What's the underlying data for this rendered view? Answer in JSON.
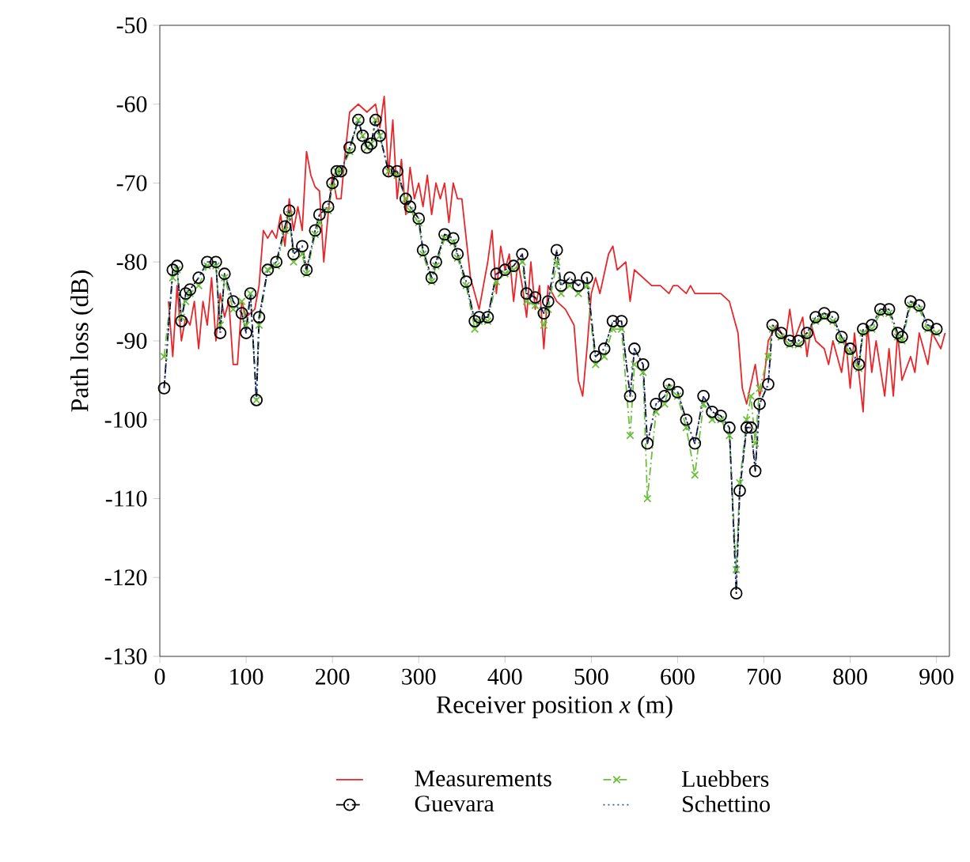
{
  "chart_data": {
    "type": "line",
    "xlabel": "Receiver position *x* (m)",
    "ylabel": "Path loss (dB)",
    "xlim": [
      0,
      915
    ],
    "ylim": [
      -130,
      -50
    ],
    "xticks": [
      0,
      100,
      200,
      300,
      400,
      500,
      600,
      700,
      800,
      900
    ],
    "yticks": [
      -130,
      -120,
      -110,
      -100,
      -90,
      -80,
      -70,
      -60,
      -50
    ],
    "legend": "bottom",
    "grid": false,
    "series": [
      {
        "name": "Measurements",
        "color": "#e8262a",
        "line_style": "solid",
        "marker": "none",
        "x": [
          10,
          15,
          20,
          25,
          30,
          35,
          40,
          45,
          50,
          55,
          60,
          65,
          70,
          75,
          80,
          85,
          90,
          95,
          100,
          110,
          115,
          120,
          125,
          130,
          135,
          140,
          145,
          150,
          155,
          160,
          165,
          170,
          175,
          180,
          185,
          190,
          195,
          200,
          205,
          210,
          215,
          220,
          230,
          240,
          250,
          255,
          260,
          265,
          270,
          275,
          280,
          285,
          290,
          295,
          300,
          305,
          310,
          315,
          320,
          325,
          330,
          335,
          340,
          345,
          350,
          355,
          360,
          365,
          370,
          375,
          380,
          385,
          390,
          395,
          400,
          405,
          410,
          415,
          420,
          425,
          430,
          435,
          440,
          445,
          450,
          460,
          470,
          480,
          485,
          490,
          495,
          500,
          505,
          510,
          520,
          525,
          530,
          540,
          545,
          550,
          560,
          570,
          580,
          590,
          595,
          600,
          610,
          615,
          620,
          630,
          640,
          650,
          660,
          670,
          675,
          680,
          690,
          695,
          700,
          705,
          715,
          725,
          730,
          735,
          745,
          750,
          755,
          760,
          770,
          775,
          780,
          790,
          795,
          800,
          805,
          815,
          820,
          825,
          830,
          840,
          845,
          850,
          855,
          860,
          870,
          875,
          880,
          890,
          895,
          905,
          910
        ],
        "values": [
          -85,
          -92,
          -83,
          -90,
          -87,
          -88,
          -85,
          -91,
          -85,
          -88,
          -82,
          -90,
          -84,
          -87,
          -85,
          -93,
          -93,
          -85,
          -87,
          -86,
          -83,
          -76,
          -77,
          -76,
          -77,
          -74,
          -78,
          -72,
          -76,
          -73,
          -76,
          -66,
          -69,
          -70.5,
          -71,
          -80,
          -74,
          -69,
          -72,
          -72,
          -66,
          -61,
          -60,
          -61,
          -60,
          -63,
          -59,
          -69,
          -62,
          -72,
          -67,
          -74,
          -68,
          -72,
          -70,
          -73,
          -69,
          -74,
          -70,
          -72,
          -70,
          -75,
          -70,
          -72,
          -72,
          -77,
          -82,
          -84,
          -86,
          -83,
          -80,
          -76,
          -84,
          -78,
          -81,
          -79,
          -85,
          -80,
          -83,
          -87,
          -80,
          -86,
          -83,
          -91,
          -83,
          -85,
          -86,
          -88,
          -95,
          -97,
          -91,
          -84,
          -82,
          -84,
          -79,
          -78,
          -81,
          -80,
          -85,
          -81,
          -82,
          -83,
          -83,
          -84,
          -83,
          -83,
          -84,
          -83,
          -84,
          -84,
          -84,
          -84,
          -85,
          -89,
          -96,
          -98,
          -93,
          -97,
          -95,
          -90,
          -88,
          -90,
          -86,
          -90,
          -87,
          -92,
          -88,
          -90,
          -91,
          -93,
          -90,
          -94,
          -90,
          -96,
          -89,
          -99,
          -88,
          -94,
          -90,
          -97,
          -91,
          -97,
          -89,
          -95,
          -92,
          -94,
          -89,
          -93,
          -89,
          -91,
          -89
        ]
      },
      {
        "name": "Luebbers",
        "color": "#6cbf3c",
        "line_style": "dashed",
        "marker": "cross",
        "x": [
          5,
          15,
          20,
          25,
          30,
          35,
          45,
          55,
          65,
          70,
          75,
          85,
          95,
          100,
          105,
          112,
          115,
          125,
          135,
          145,
          150,
          155,
          165,
          170,
          180,
          185,
          195,
          200,
          205,
          210,
          220,
          230,
          235,
          240,
          245,
          250,
          255,
          265,
          275,
          285,
          290,
          300,
          305,
          315,
          320,
          330,
          340,
          345,
          355,
          365,
          370,
          380,
          390,
          400,
          410,
          420,
          425,
          435,
          445,
          450,
          460,
          465,
          475,
          485,
          495,
          505,
          515,
          525,
          535,
          545,
          550,
          560,
          565,
          575,
          585,
          590,
          600,
          610,
          620,
          630,
          640,
          650,
          660,
          668,
          672,
          680,
          685,
          690,
          695,
          705,
          710,
          720,
          730,
          740,
          750,
          760,
          770,
          780,
          790,
          800,
          810,
          815,
          825,
          835,
          845,
          855,
          860,
          870,
          880,
          890,
          900
        ],
        "values": [
          -92,
          -82,
          -81,
          -87,
          -85,
          -84,
          -83,
          -80.5,
          -80.5,
          -88,
          -82,
          -86,
          -85,
          -88,
          -84,
          -97.5,
          -88,
          -81,
          -80.5,
          -76,
          -74,
          -80,
          -79,
          -81.5,
          -76.5,
          -75,
          -73.5,
          -70.5,
          -68.5,
          -68.5,
          -66,
          -62,
          -64,
          -65.5,
          -65,
          -62,
          -64,
          -68.5,
          -69,
          -72,
          -73.5,
          -75,
          -79,
          -82.5,
          -80.5,
          -77,
          -77.5,
          -79.5,
          -83,
          -88.5,
          -87.5,
          -87.5,
          -82.5,
          -81.5,
          -81,
          -80,
          -85,
          -85.5,
          -88,
          -86,
          -80,
          -84,
          -83,
          -84,
          -83,
          -93,
          -92,
          -88.5,
          -88.5,
          -102,
          -93,
          -94,
          -110,
          -99,
          -98,
          -96,
          -97,
          -101,
          -107,
          -98,
          -100,
          -100,
          -102,
          -119,
          -108,
          -100,
          -97,
          -103,
          -96,
          -92,
          -88.5,
          -89.5,
          -90.5,
          -90.5,
          -89.5,
          -87.5,
          -87,
          -87.5,
          -90,
          -91.5,
          -93.5,
          -89,
          -88.5,
          -86.5,
          -86.5,
          -89.5,
          -90,
          -85.5,
          -86,
          -88.5,
          -89
        ]
      },
      {
        "name": "Guevara",
        "color": "#000000",
        "line_style": "dashed",
        "marker": "circle",
        "x": [
          5,
          15,
          20,
          25,
          30,
          35,
          45,
          55,
          65,
          70,
          75,
          85,
          95,
          100,
          105,
          112,
          115,
          125,
          135,
          145,
          150,
          155,
          165,
          170,
          180,
          185,
          195,
          200,
          205,
          210,
          220,
          230,
          235,
          240,
          245,
          250,
          255,
          265,
          275,
          285,
          290,
          300,
          305,
          315,
          320,
          330,
          340,
          345,
          355,
          365,
          370,
          380,
          390,
          400,
          410,
          420,
          425,
          435,
          445,
          450,
          460,
          465,
          475,
          485,
          495,
          505,
          515,
          525,
          535,
          545,
          550,
          560,
          565,
          575,
          585,
          590,
          600,
          610,
          620,
          630,
          640,
          650,
          660,
          668,
          672,
          680,
          685,
          690,
          695,
          705,
          710,
          720,
          730,
          740,
          750,
          760,
          770,
          780,
          790,
          800,
          810,
          815,
          825,
          835,
          845,
          855,
          860,
          870,
          880,
          890,
          900
        ],
        "values": [
          -96,
          -81,
          -80.5,
          -87.5,
          -84,
          -83.5,
          -82,
          -80,
          -80,
          -89,
          -81.5,
          -85,
          -86.5,
          -89,
          -84,
          -97.5,
          -87,
          -81,
          -80,
          -75.5,
          -73.5,
          -79,
          -78,
          -81,
          -76,
          -74,
          -73,
          -70,
          -68.5,
          -68.5,
          -65.5,
          -62,
          -64,
          -65.5,
          -65,
          -62,
          -64,
          -68.5,
          -68.5,
          -72,
          -73,
          -74.5,
          -78.5,
          -82,
          -80,
          -76.5,
          -77,
          -79,
          -82.5,
          -87.5,
          -87,
          -87,
          -81.5,
          -81,
          -80.5,
          -79,
          -84,
          -84.5,
          -86.5,
          -85,
          -78.5,
          -83,
          -82,
          -83,
          -82,
          -92,
          -91,
          -87.5,
          -87.5,
          -97,
          -91,
          -93,
          -103,
          -98,
          -97,
          -95.5,
          -96.5,
          -100,
          -103,
          -97,
          -99,
          -99.5,
          -101,
          -122,
          -109,
          -101,
          -101,
          -106.5,
          -98,
          -95.5,
          -88,
          -89,
          -90,
          -90,
          -89,
          -87,
          -86.5,
          -87,
          -89.5,
          -91,
          -93,
          -88.5,
          -88,
          -86,
          -86,
          -89,
          -89.5,
          -85,
          -85.5,
          -88,
          -88.5
        ]
      },
      {
        "name": "Schettino",
        "color": "#3a53c4",
        "line_style": "dotted",
        "marker": "none",
        "x": [
          5,
          15,
          20,
          25,
          30,
          35,
          45,
          55,
          65,
          70,
          75,
          85,
          95,
          100,
          105,
          112,
          115,
          125,
          135,
          145,
          150,
          155,
          165,
          170,
          180,
          185,
          195,
          200,
          205,
          210,
          220,
          230,
          235,
          240,
          245,
          250,
          255,
          265,
          275,
          285,
          290,
          300,
          305,
          315,
          320,
          330,
          340,
          345,
          355,
          365,
          370,
          380,
          390,
          400,
          410,
          420,
          425,
          435,
          445,
          450,
          460,
          465,
          475,
          485,
          495,
          505,
          515,
          525,
          535,
          545,
          550,
          560,
          565,
          575,
          585,
          590,
          600,
          610,
          620,
          630,
          640,
          650,
          660,
          668,
          672,
          680,
          685,
          690,
          695,
          705,
          710,
          720,
          730,
          740,
          750,
          760,
          770,
          780,
          790,
          800,
          810,
          815,
          825,
          835,
          845,
          855,
          860,
          870,
          880,
          890,
          900
        ],
        "values": [
          -96,
          -81,
          -80.5,
          -87.5,
          -84,
          -83.5,
          -82,
          -80,
          -80,
          -89,
          -81.5,
          -85,
          -86.5,
          -89,
          -84,
          -97.5,
          -87,
          -81,
          -80,
          -75.5,
          -73.5,
          -79,
          -78,
          -81,
          -76,
          -74,
          -73,
          -70,
          -68.5,
          -68.5,
          -65.5,
          -62,
          -64,
          -65.5,
          -65,
          -62,
          -64,
          -68.5,
          -68.5,
          -72,
          -73,
          -74.5,
          -78.5,
          -82,
          -80,
          -76.5,
          -77,
          -79,
          -82.5,
          -87.5,
          -87,
          -87,
          -81.5,
          -81,
          -80.5,
          -79,
          -84,
          -84.5,
          -86.5,
          -85,
          -78.5,
          -83,
          -82,
          -83,
          -82,
          -92,
          -91,
          -87.5,
          -87.5,
          -97,
          -91,
          -93,
          -103,
          -98,
          -97,
          -95.5,
          -96.5,
          -100,
          -103,
          -97,
          -99,
          -99.5,
          -101,
          -121,
          -109,
          -101,
          -101,
          -106,
          -98,
          -95.5,
          -88,
          -89,
          -90,
          -90,
          -89,
          -87,
          -86.5,
          -87,
          -89.5,
          -91,
          -93,
          -88.5,
          -88,
          -86,
          -86,
          -89,
          -89.5,
          -85,
          -85.5,
          -88,
          -88.5
        ]
      }
    ]
  }
}
